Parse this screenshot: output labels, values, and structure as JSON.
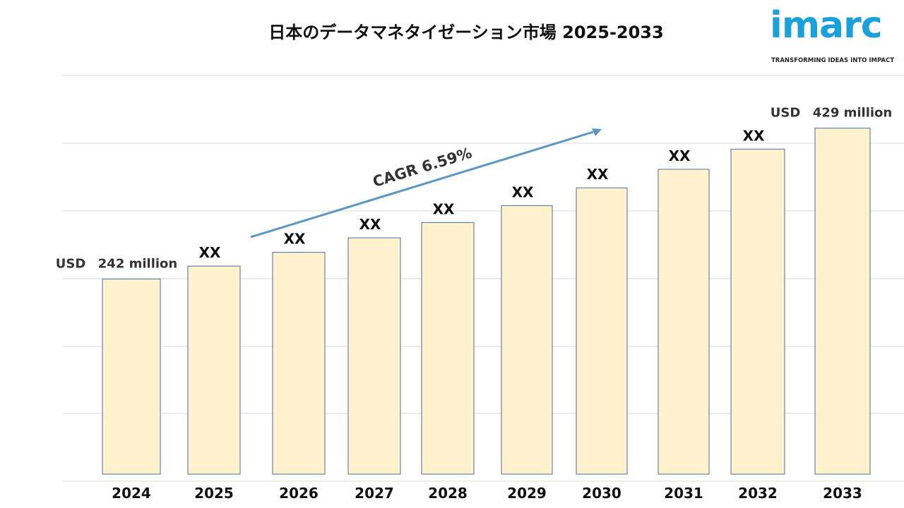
{
  "chart_data": {
    "type": "bar",
    "title": "日本のデータマネタイゼーション市場  2025-2033",
    "categories": [
      "2024",
      "2025",
      "2026",
      "2027",
      "2028",
      "2029",
      "2030",
      "2031",
      "2032",
      "2033"
    ],
    "values": [
      242,
      258,
      275,
      293,
      312,
      333,
      355,
      378,
      403,
      429
    ],
    "data_labels": [
      "242 million",
      "XX",
      "XX",
      "XX",
      "XX",
      "XX",
      "XX",
      "XX",
      "XX",
      "429 million"
    ],
    "value_unit_label": "USD",
    "cagr_label": "CAGR 6.59%",
    "grid": true,
    "ylim": [
      0,
      470
    ],
    "bar_color": "#fff2cc",
    "bar_edge_color": "#4a6fa5",
    "arrow_color": "#5b96c8"
  },
  "logo": {
    "name": "imarc",
    "tagline": "TRANSFORMING IDEAS INTO IMPACT",
    "color": "#1aa0dd"
  }
}
